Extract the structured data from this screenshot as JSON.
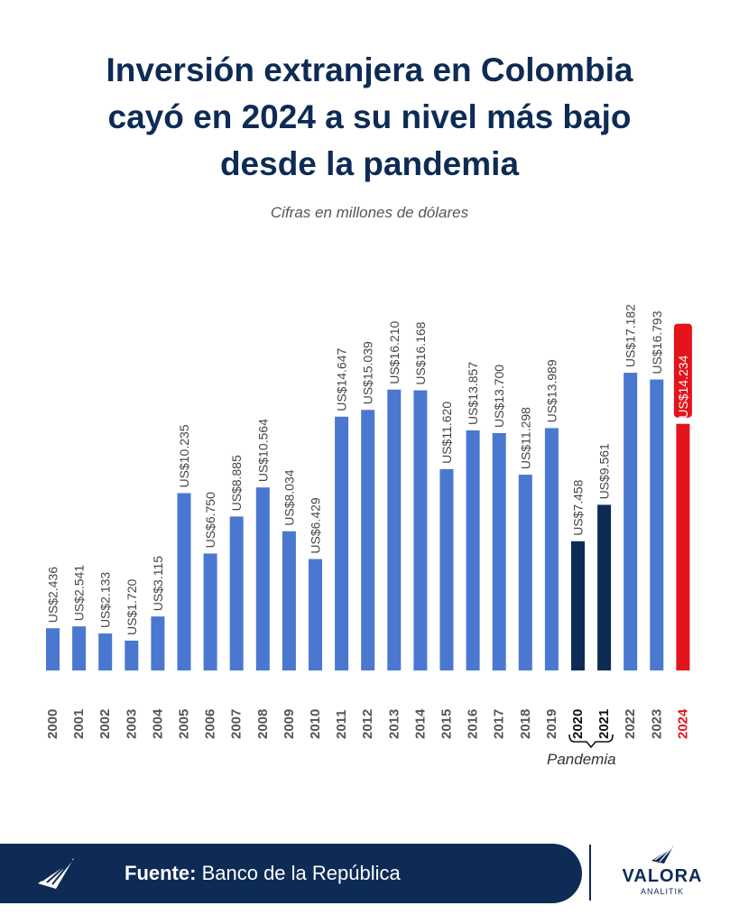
{
  "title": {
    "line1": "Inversión extranjera en Colombia",
    "line2": "cayó en 2024 a su nivel más bajo",
    "line3": "desde la pandemia"
  },
  "subtitle": "Cifras en millones de dólares",
  "annotation": {
    "pandemia": "Pandemia"
  },
  "footer": {
    "source_label": "Fuente:",
    "source_value": "Banco de la República"
  },
  "brand": {
    "name": "VALORA",
    "sub": "ANALITIK"
  },
  "colors": {
    "default_bar": "#4a78d0",
    "pandemic_bar": "#0d2b55",
    "highlight_bar": "#e3141b",
    "title": "#0d2b55"
  },
  "chart_data": {
    "type": "bar",
    "title": "Inversión extranjera en Colombia cayó en 2024 a su nivel más bajo desde la pandemia",
    "subtitle": "Cifras en millones de dólares",
    "categories": [
      "2000",
      "2001",
      "2002",
      "2003",
      "2004",
      "2005",
      "2006",
      "2007",
      "2008",
      "2009",
      "2010",
      "2011",
      "2012",
      "2013",
      "2014",
      "2015",
      "2016",
      "2017",
      "2018",
      "2019",
      "2020",
      "2021",
      "2022",
      "2023",
      "2024"
    ],
    "values": [
      2436,
      2541,
      2133,
      1720,
      3115,
      10235,
      6750,
      8885,
      10564,
      8034,
      6429,
      14647,
      15039,
      16210,
      16168,
      11620,
      13857,
      13700,
      11298,
      13989,
      7458,
      9561,
      17182,
      16793,
      14234
    ],
    "labels": [
      "US$2.436",
      "US$2.541",
      "US$2.133",
      "US$1.720",
      "US$3.115",
      "US$10.235",
      "US$6.750",
      "US$8.885",
      "US$10.564",
      "US$8.034",
      "US$6.429",
      "US$14.647",
      "US$15.039",
      "US$16.210",
      "US$16.168",
      "US$11.620",
      "US$13.857",
      "US$13.700",
      "US$11.298",
      "US$13.989",
      "US$7.458",
      "US$9.561",
      "US$17.182",
      "US$16.793",
      "US$14.234"
    ],
    "pandemic_years": [
      "2020",
      "2021"
    ],
    "highlight_year": "2024",
    "ylim": [
      0,
      20000
    ],
    "xlabel": "",
    "ylabel": "",
    "grid": false,
    "legend": "none"
  }
}
